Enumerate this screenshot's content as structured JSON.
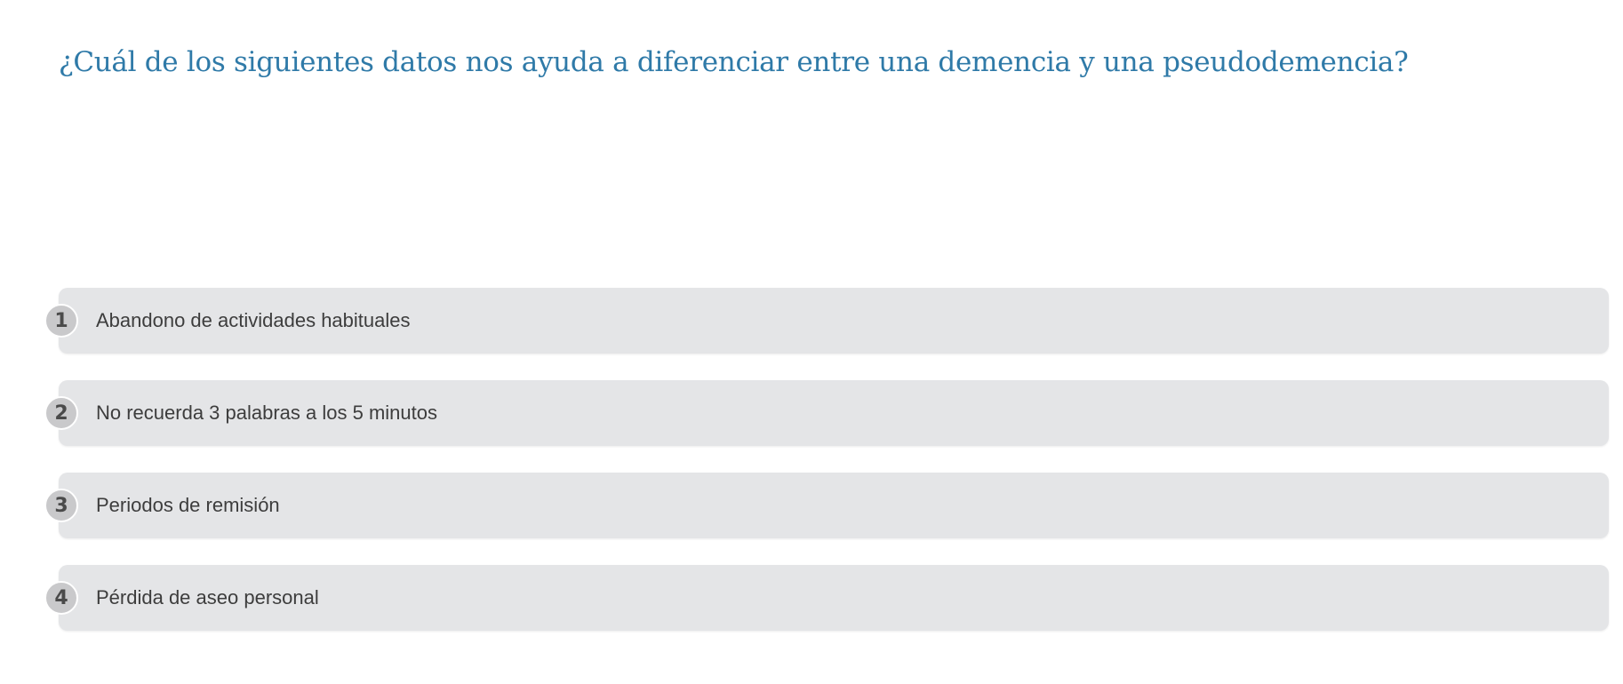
{
  "question": {
    "text": "¿Cuál de los siguientes datos nos ayuda a diferenciar entre una demencia y una pseudodemencia?"
  },
  "options": [
    {
      "number": "1",
      "label": "Abandono de actividades habituales"
    },
    {
      "number": "2",
      "label": "No recuerda 3 palabras a los 5 minutos"
    },
    {
      "number": "3",
      "label": "Periodos de remisión"
    },
    {
      "number": "4",
      "label": "Pérdida de aseo personal"
    }
  ],
  "colors": {
    "question_text": "#2f7aa8",
    "option_background": "#e4e5e7",
    "number_badge": "#c9c9cb",
    "option_text": "#3d3d3d"
  }
}
